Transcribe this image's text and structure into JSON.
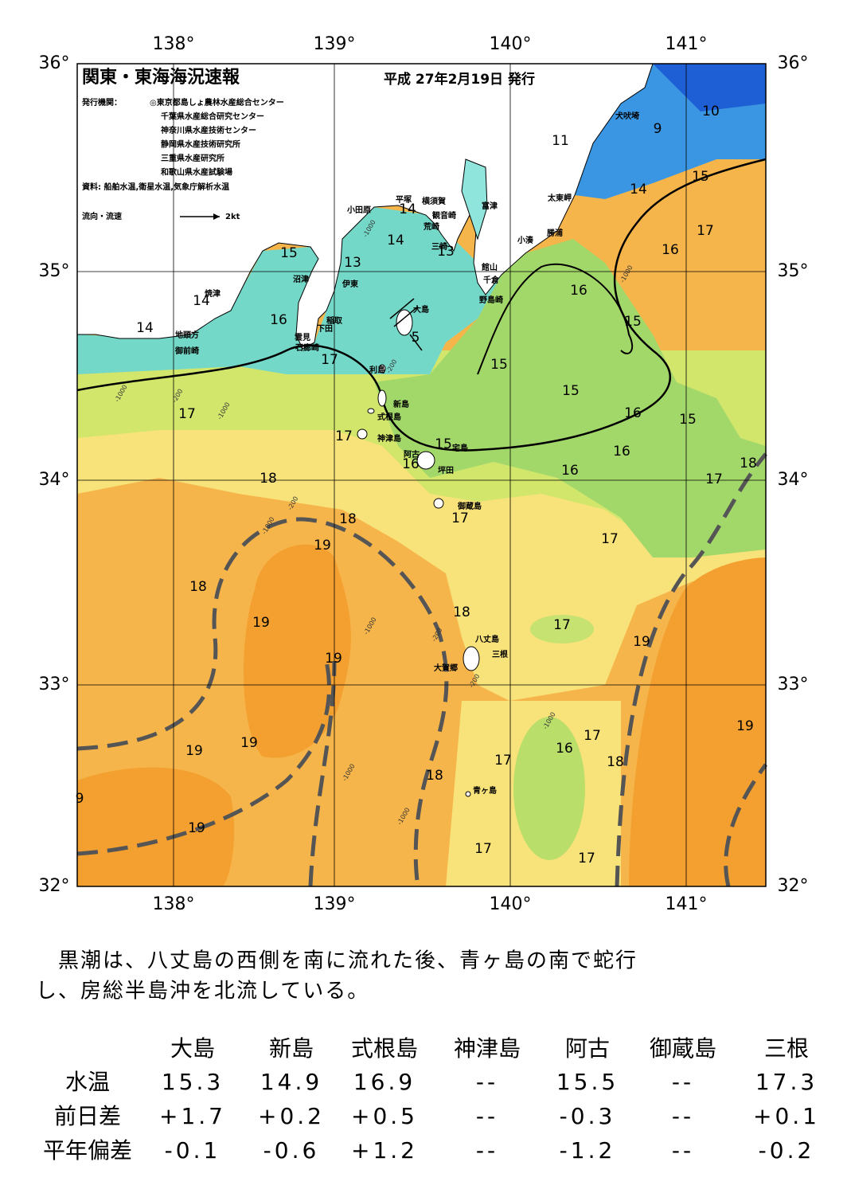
{
  "map": {
    "title": "関東・東海海況速報",
    "date": "平成 27年2月19日 発行",
    "publisher_label": "発行機関：",
    "publishers": [
      "◎東京都島しょ農林水産総合センター",
      "千葉県水産総合研究センター",
      "神奈川県水産技術センター",
      "静岡県水産技術研究所",
      "三重県水産研究所",
      "和歌山県水産試験場"
    ],
    "sources": "資料: 船舶水温,衛星水温,気象庁解析水温",
    "legend_label": "流向・流速",
    "legend_speed": "2kt",
    "lon_labels": [
      "138°",
      "139°",
      "140°",
      "141°"
    ],
    "lat_labels": [
      "36°",
      "35°",
      "34°",
      "33°",
      "32°"
    ],
    "place_labels": [
      "犬吠埼",
      "平塚",
      "横須賀",
      "観音崎",
      "小田原",
      "富津",
      "荒崎",
      "三崎",
      "太東岬",
      "勝浦",
      "小湊",
      "館山",
      "千倉",
      "野島崎",
      "沼津",
      "伊東",
      "焼津",
      "稲取",
      "下田",
      "雲見",
      "石廊崎",
      "地頭方",
      "御前崎",
      "大島",
      "利島",
      "新島",
      "式根島",
      "神津島",
      "宅島",
      "阿古",
      "坪田",
      "御蔵島",
      "八丈島",
      "三根",
      "大賀郷",
      "青ヶ島"
    ],
    "contour_labels": [
      "15",
      "13",
      "14",
      "16",
      "14",
      "17",
      "17",
      "17",
      "15",
      "16",
      "18",
      "18",
      "19",
      "18",
      "19",
      "19",
      "18",
      "19",
      "19",
      "18",
      "17",
      "16",
      "17",
      "18",
      "19",
      "17",
      "17",
      "11",
      "10",
      "9",
      "15",
      "14",
      "17",
      "16",
      "16",
      "15",
      "15",
      "15",
      "16",
      "15",
      "16",
      "16",
      "17",
      "18",
      "17",
      "17",
      "19",
      "19",
      "17",
      "14",
      "14",
      "13",
      "5",
      "9"
    ],
    "depth_labels": [
      "-1000",
      "-1000",
      "-1000",
      "-1000",
      "-1000",
      "-1000",
      "-1000",
      "-1000",
      "-1000",
      "-200",
      "-200",
      "-200",
      "-200",
      "-200"
    ]
  },
  "text": {
    "lines": [
      "　黒潮は、八丈島の西側を南に流れた後、青ヶ島の南で蛇行",
      "し、房総半島沖を北流している。"
    ]
  },
  "table": {
    "columns": [
      "大島",
      "新島",
      "式根島",
      "神津島",
      "阿古",
      "御蔵島",
      "三根"
    ],
    "rows": [
      {
        "label": "水温",
        "values": [
          "15.3",
          "14.9",
          "16.9",
          "--",
          "15.5",
          "--",
          "17.3"
        ]
      },
      {
        "label": "前日差",
        "values": [
          "+1.7",
          "+0.2",
          "+0.5",
          "--",
          "-0.3",
          "--",
          "+0.1"
        ]
      },
      {
        "label": "平年偏差",
        "values": [
          "-0.1",
          "-0.6",
          "+1.2",
          "--",
          "-1.2",
          "--",
          "-0.2"
        ]
      }
    ]
  }
}
